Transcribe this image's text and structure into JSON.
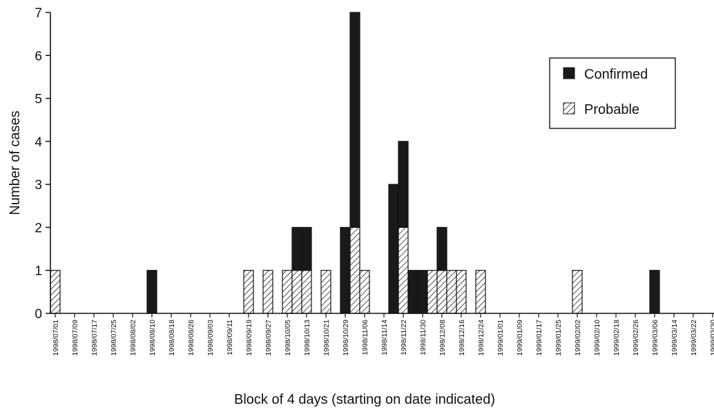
{
  "chart_data": {
    "type": "bar",
    "stacked": true,
    "xlabel": "Block of 4 days (starting on date indicated)",
    "ylabel": "Number of cases",
    "ylim": [
      0,
      7
    ],
    "yticks": [
      0,
      1,
      2,
      3,
      4,
      5,
      6,
      7
    ],
    "categories": [
      "1998/07/01",
      "1998/07/05",
      "1998/07/09",
      "1998/07/13",
      "1998/07/17",
      "1998/07/21",
      "1998/07/25",
      "1998/07/29",
      "1998/08/02",
      "1998/08/06",
      "1998/08/10",
      "1998/08/14",
      "1998/08/18",
      "1998/08/22",
      "1998/08/26",
      "1998/08/30",
      "1998/09/03",
      "1998/09/07",
      "1998/09/11",
      "1998/09/15",
      "1998/09/19",
      "1998/09/23",
      "1998/09/27",
      "1998/10/01",
      "1998/10/05",
      "1998/10/09",
      "1998/10/13",
      "1998/10/17",
      "1998/10/21",
      "1998/10/25",
      "1998/10/29",
      "1998/11/02",
      "1998/11/06",
      "1998/11/10",
      "1998/11/14",
      "1998/11/18",
      "1998/11/22",
      "1998/11/26",
      "1998/11/30",
      "1998/12/04",
      "1998/12/08",
      "1998/12/12",
      "1998/12/16",
      "1998/12/20",
      "1998/12/24",
      "1998/12/28",
      "1999/01/01",
      "1999/01/05",
      "1999/01/09",
      "1999/01/13",
      "1999/01/17",
      "1999/01/21",
      "1999/01/25",
      "1999/01/29",
      "1999/02/02",
      "1999/02/06",
      "1999/02/10",
      "1999/02/14",
      "1999/02/18",
      "1999/02/22",
      "1999/02/26",
      "1999/03/02",
      "1999/03/06",
      "1999/03/10",
      "1999/03/14",
      "1999/03/18",
      "1999/03/22",
      "1999/03/26",
      "1999/03/30"
    ],
    "tick_labels": [
      "1998/07/01",
      "1998/07/09",
      "1998/07/17",
      "1998/07/25",
      "1998/08/02",
      "1998/08/10",
      "1998/08/18",
      "1998/08/26",
      "1998/09/03",
      "1998/09/11",
      "1998/09/19",
      "1998/09/27",
      "1998/10/05",
      "1998/10/13",
      "1998/10/21",
      "1998/10/29",
      "1998/11/06",
      "1998/11/14",
      "1998/11/22",
      "1998/11/30",
      "1998/12/08",
      "1998/12/16",
      "1998/12/24",
      "1999/01/01",
      "1999/01/09",
      "1999/01/17",
      "1999/01/25",
      "1999/02/02",
      "1999/02/10",
      "1999/02/18",
      "1999/02/26",
      "1999/03/06",
      "1999/03/14",
      "1999/03/22",
      "1999/03/30"
    ],
    "series": [
      {
        "name": "Probable",
        "values": [
          1,
          0,
          0,
          0,
          0,
          0,
          0,
          0,
          0,
          0,
          0,
          0,
          0,
          0,
          0,
          0,
          0,
          0,
          0,
          0,
          1,
          0,
          1,
          0,
          1,
          1,
          1,
          0,
          1,
          0,
          0,
          2,
          1,
          0,
          0,
          0,
          2,
          0,
          0,
          1,
          1,
          1,
          1,
          0,
          1,
          0,
          0,
          0,
          0,
          0,
          0,
          0,
          0,
          0,
          1,
          0,
          0,
          0,
          0,
          0,
          0,
          0,
          0,
          0,
          0,
          0,
          0,
          0,
          0
        ]
      },
      {
        "name": "Confirmed",
        "values": [
          0,
          0,
          0,
          0,
          0,
          0,
          0,
          0,
          0,
          0,
          1,
          0,
          0,
          0,
          0,
          0,
          0,
          0,
          0,
          0,
          0,
          0,
          0,
          0,
          0,
          1,
          1,
          0,
          0,
          0,
          2,
          5,
          0,
          0,
          0,
          3,
          2,
          1,
          1,
          0,
          1,
          0,
          0,
          0,
          0,
          0,
          0,
          0,
          0,
          0,
          0,
          0,
          0,
          0,
          0,
          0,
          0,
          0,
          0,
          0,
          0,
          0,
          1,
          0,
          0,
          0,
          0,
          0,
          0
        ]
      }
    ],
    "colors": {
      "Confirmed": "#1a1a1a",
      "Probable": "#ffffff"
    },
    "grid": false,
    "legend_position": "top-right"
  }
}
